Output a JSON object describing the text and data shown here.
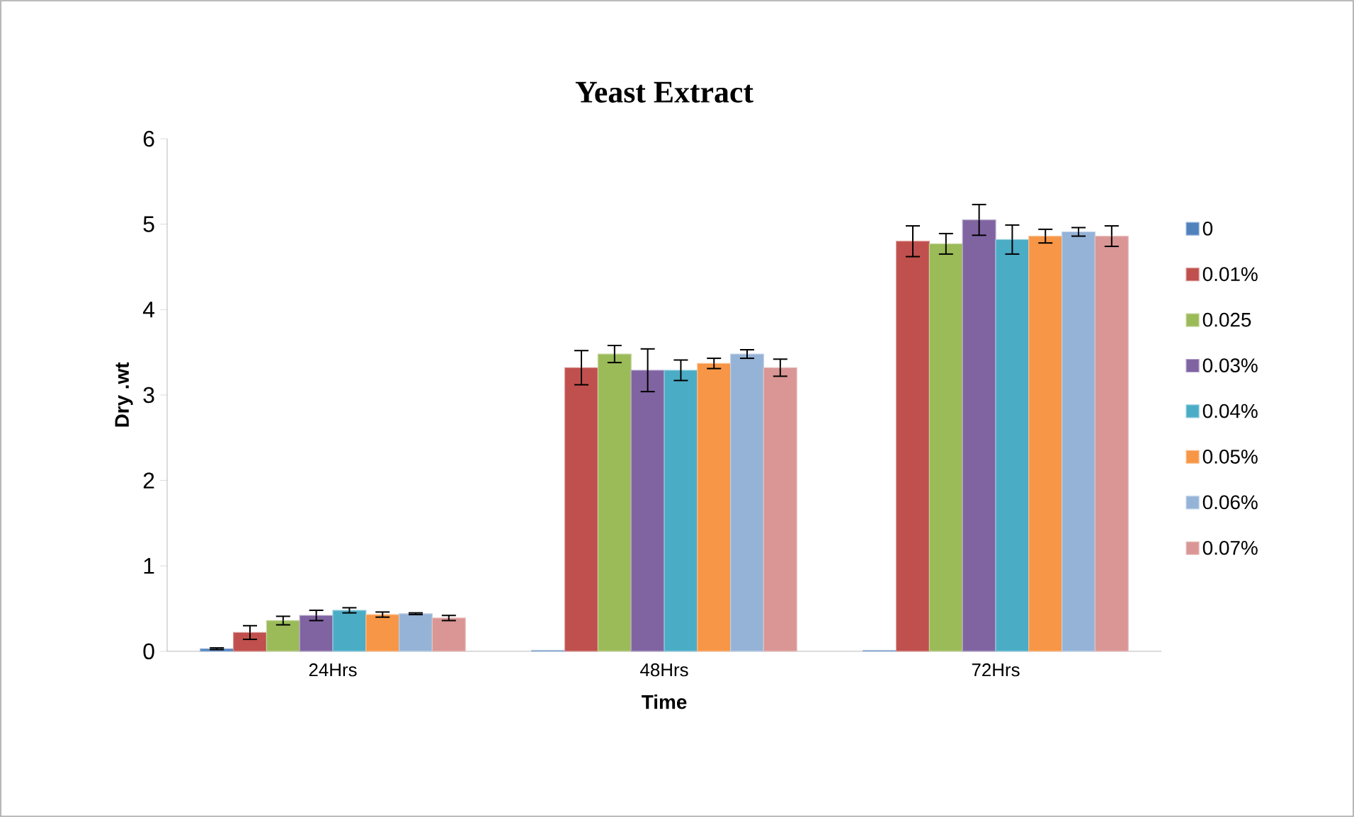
{
  "chart_data": {
    "type": "bar",
    "title": "Yeast Extract",
    "xlabel": "Time",
    "ylabel": "Dry .wt",
    "categories": [
      "24Hrs",
      "48Hrs",
      "72Hrs"
    ],
    "ylim": [
      0,
      6
    ],
    "yticks": [
      0,
      1,
      2,
      3,
      4,
      5,
      6
    ],
    "grid": false,
    "legend": "right",
    "series": [
      {
        "name": "0",
        "color": "#4f81bd",
        "values": [
          0.03,
          0.01,
          0.01
        ],
        "errors": [
          0.01,
          null,
          null
        ]
      },
      {
        "name": "0.01%",
        "color": "#c0504d",
        "values": [
          0.22,
          3.32,
          4.8
        ],
        "errors": [
          0.08,
          0.2,
          0.18
        ]
      },
      {
        "name": "0.025",
        "color": "#9bbb59",
        "values": [
          0.36,
          3.48,
          4.77
        ],
        "errors": [
          0.05,
          0.1,
          0.12
        ]
      },
      {
        "name": "0.03%",
        "color": "#8064a2",
        "values": [
          0.42,
          3.29,
          5.05
        ],
        "errors": [
          0.06,
          0.25,
          0.18
        ]
      },
      {
        "name": "0.04%",
        "color": "#4bacc6",
        "values": [
          0.48,
          3.29,
          4.82
        ],
        "errors": [
          0.03,
          0.12,
          0.17
        ]
      },
      {
        "name": "0.05%",
        "color": "#f79646",
        "values": [
          0.43,
          3.37,
          4.86
        ],
        "errors": [
          0.03,
          0.06,
          0.08
        ]
      },
      {
        "name": "0.06%",
        "color": "#95b3d7",
        "values": [
          0.44,
          3.48,
          4.91
        ],
        "errors": [
          0.01,
          0.05,
          0.05
        ]
      },
      {
        "name": "0.07%",
        "color": "#d99694",
        "values": [
          0.39,
          3.32,
          4.86
        ],
        "errors": [
          0.03,
          0.1,
          0.12
        ]
      }
    ]
  }
}
